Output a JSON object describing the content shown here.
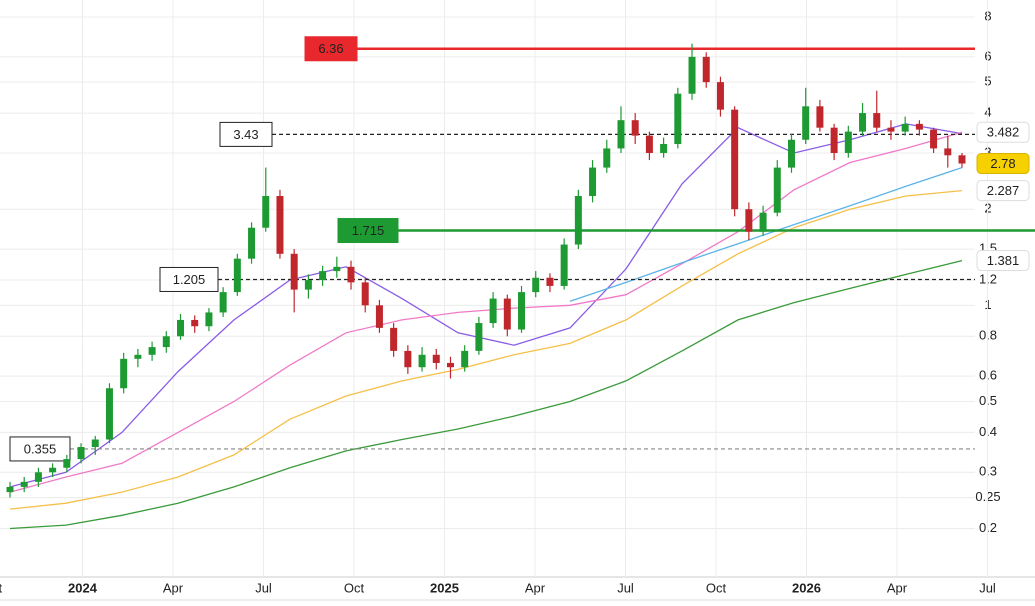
{
  "chart_data": {
    "type": "candlestick",
    "log_scale": true,
    "grid": true,
    "ylim": [
      0.141,
      9.04
    ],
    "yticks": [
      0.2,
      0.25,
      0.3,
      0.4,
      0.5,
      0.6,
      0.8,
      1,
      1.2,
      1.5,
      2,
      3,
      4,
      5,
      6,
      8
    ],
    "xtick_labels": [
      "Oct",
      "2024",
      "Apr",
      "Jul",
      "Oct",
      "2025",
      "Apr",
      "Jul",
      "Oct",
      "2026",
      "Apr",
      "Jul"
    ],
    "up_color": "#1e9a33",
    "down_color": "#c0272d",
    "candles": [
      [
        0.26,
        0.28,
        0.25,
        0.27
      ],
      [
        0.27,
        0.29,
        0.26,
        0.28
      ],
      [
        0.28,
        0.31,
        0.27,
        0.3
      ],
      [
        0.3,
        0.32,
        0.29,
        0.31
      ],
      [
        0.31,
        0.34,
        0.3,
        0.33
      ],
      [
        0.33,
        0.37,
        0.32,
        0.36
      ],
      [
        0.36,
        0.39,
        0.34,
        0.38
      ],
      [
        0.38,
        0.57,
        0.37,
        0.55
      ],
      [
        0.55,
        0.71,
        0.53,
        0.68
      ],
      [
        0.68,
        0.73,
        0.64,
        0.7
      ],
      [
        0.7,
        0.77,
        0.67,
        0.74
      ],
      [
        0.74,
        0.83,
        0.71,
        0.8
      ],
      [
        0.8,
        0.94,
        0.78,
        0.9
      ],
      [
        0.9,
        0.93,
        0.82,
        0.86
      ],
      [
        0.86,
        0.98,
        0.83,
        0.95
      ],
      [
        0.95,
        1.14,
        0.92,
        1.1
      ],
      [
        1.1,
        1.45,
        1.07,
        1.4
      ],
      [
        1.4,
        1.82,
        1.35,
        1.75
      ],
      [
        1.75,
        2.7,
        1.7,
        2.2
      ],
      [
        2.2,
        2.3,
        1.4,
        1.45
      ],
      [
        1.45,
        1.5,
        0.95,
        1.12
      ],
      [
        1.12,
        1.25,
        1.05,
        1.2
      ],
      [
        1.2,
        1.33,
        1.15,
        1.28
      ],
      [
        1.28,
        1.42,
        1.22,
        1.32
      ],
      [
        1.32,
        1.38,
        1.12,
        1.18
      ],
      [
        1.18,
        1.22,
        0.95,
        1.0
      ],
      [
        1.0,
        1.04,
        0.82,
        0.85
      ],
      [
        0.85,
        0.88,
        0.69,
        0.72
      ],
      [
        0.72,
        0.75,
        0.61,
        0.64
      ],
      [
        0.64,
        0.74,
        0.62,
        0.7
      ],
      [
        0.7,
        0.73,
        0.63,
        0.66
      ],
      [
        0.66,
        0.69,
        0.59,
        0.64
      ],
      [
        0.64,
        0.75,
        0.62,
        0.72
      ],
      [
        0.72,
        0.92,
        0.7,
        0.88
      ],
      [
        0.88,
        1.1,
        0.85,
        1.05
      ],
      [
        1.05,
        1.08,
        0.8,
        0.84
      ],
      [
        0.84,
        1.15,
        0.82,
        1.1
      ],
      [
        1.1,
        1.28,
        1.06,
        1.22
      ],
      [
        1.22,
        1.26,
        1.1,
        1.15
      ],
      [
        1.15,
        1.62,
        1.12,
        1.55
      ],
      [
        1.55,
        2.3,
        1.5,
        2.2
      ],
      [
        2.2,
        2.85,
        2.1,
        2.7
      ],
      [
        2.7,
        3.3,
        2.6,
        3.1
      ],
      [
        3.1,
        4.2,
        3.0,
        3.8
      ],
      [
        3.8,
        4.0,
        3.2,
        3.4
      ],
      [
        3.4,
        3.5,
        2.85,
        3.0
      ],
      [
        3.0,
        3.35,
        2.9,
        3.2
      ],
      [
        3.2,
        4.8,
        3.1,
        4.6
      ],
      [
        4.6,
        6.6,
        4.4,
        6.0
      ],
      [
        6.0,
        6.2,
        4.8,
        5.0
      ],
      [
        5.0,
        5.2,
        3.9,
        4.1
      ],
      [
        4.1,
        4.2,
        1.9,
        2.0
      ],
      [
        2.0,
        2.1,
        1.6,
        1.7
      ],
      [
        1.7,
        2.05,
        1.65,
        1.95
      ],
      [
        1.95,
        2.85,
        1.9,
        2.7
      ],
      [
        2.7,
        3.45,
        2.6,
        3.3
      ],
      [
        3.3,
        4.8,
        3.2,
        4.2
      ],
      [
        4.2,
        4.4,
        3.5,
        3.6
      ],
      [
        3.6,
        3.7,
        2.85,
        3.0
      ],
      [
        3.0,
        3.65,
        2.9,
        3.5
      ],
      [
        3.5,
        4.3,
        3.4,
        4.0
      ],
      [
        4.0,
        4.7,
        3.5,
        3.6
      ],
      [
        3.6,
        3.8,
        3.3,
        3.5
      ],
      [
        3.5,
        3.9,
        3.4,
        3.7
      ],
      [
        3.7,
        3.8,
        3.4,
        3.55
      ],
      [
        3.55,
        3.6,
        3.0,
        3.1
      ],
      [
        3.1,
        3.4,
        2.7,
        2.95
      ],
      [
        2.95,
        3.0,
        2.7,
        2.78
      ]
    ],
    "series": [
      {
        "color": "#8a5ce6",
        "values": [
          0.27,
          0.3,
          0.4,
          0.62,
          0.9,
          1.2,
          1.32,
          1.05,
          0.82,
          0.75,
          0.85,
          1.3,
          2.4,
          3.6,
          3.0,
          3.3,
          3.7,
          3.45
        ]
      },
      {
        "color": "#f07ac8",
        "values": [
          0.26,
          0.29,
          0.32,
          0.4,
          0.5,
          0.65,
          0.82,
          0.9,
          0.95,
          0.98,
          1.0,
          1.08,
          1.35,
          1.7,
          2.3,
          2.8,
          3.1,
          3.482
        ]
      },
      {
        "color": "#f5c04a",
        "values": [
          0.23,
          0.24,
          0.26,
          0.29,
          0.34,
          0.44,
          0.52,
          0.58,
          0.63,
          0.7,
          0.76,
          0.9,
          1.15,
          1.45,
          1.75,
          2.0,
          2.2,
          2.287
        ]
      },
      {
        "color": "#3a9a3a",
        "values": [
          0.2,
          0.205,
          0.22,
          0.24,
          0.27,
          0.31,
          0.35,
          0.38,
          0.41,
          0.45,
          0.5,
          0.58,
          0.72,
          0.9,
          1.02,
          1.13,
          1.25,
          1.381
        ]
      },
      {
        "color": "#5ab4e8",
        "values": [
          null,
          null,
          null,
          null,
          null,
          null,
          null,
          null,
          null,
          null,
          1.03,
          1.18,
          1.36,
          1.56,
          1.79,
          2.05,
          2.36,
          2.7
        ]
      }
    ],
    "levels": [
      {
        "value": 6.36,
        "color": "#e8282d",
        "style": "solid"
      },
      {
        "value": 3.43,
        "color": "#222222",
        "style": "dashed"
      },
      {
        "value": 1.715,
        "color": "#1e9a33",
        "style": "solid"
      },
      {
        "value": 1.205,
        "color": "#222222",
        "style": "dashed"
      },
      {
        "value": 0.355,
        "color": "#888888",
        "style": "dashed"
      }
    ]
  }
}
